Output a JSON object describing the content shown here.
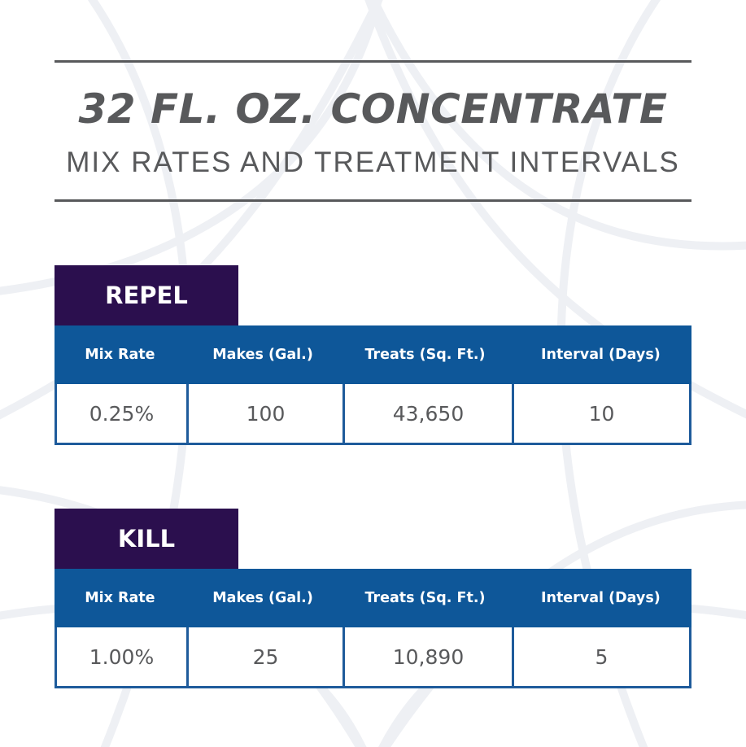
{
  "title": "32 FL. OZ. CONCENTRATE",
  "subtitle": "MIX RATES AND TREATMENT INTERVALS",
  "columns": [
    "Mix Rate",
    "Makes (Gal.)",
    "Treats (Sq. Ft.)",
    "Interval (Days)"
  ],
  "sections": [
    {
      "label": "REPEL",
      "values": [
        "0.25%",
        "100",
        "43,650",
        "10"
      ]
    },
    {
      "label": "KILL",
      "values": [
        "1.00%",
        "25",
        "10,890",
        "5"
      ]
    }
  ],
  "colors": {
    "tag_background": "#2b0f4e",
    "header_background": "#0e5799",
    "border": "#1e5b9b",
    "text_gray": "#58595b"
  }
}
